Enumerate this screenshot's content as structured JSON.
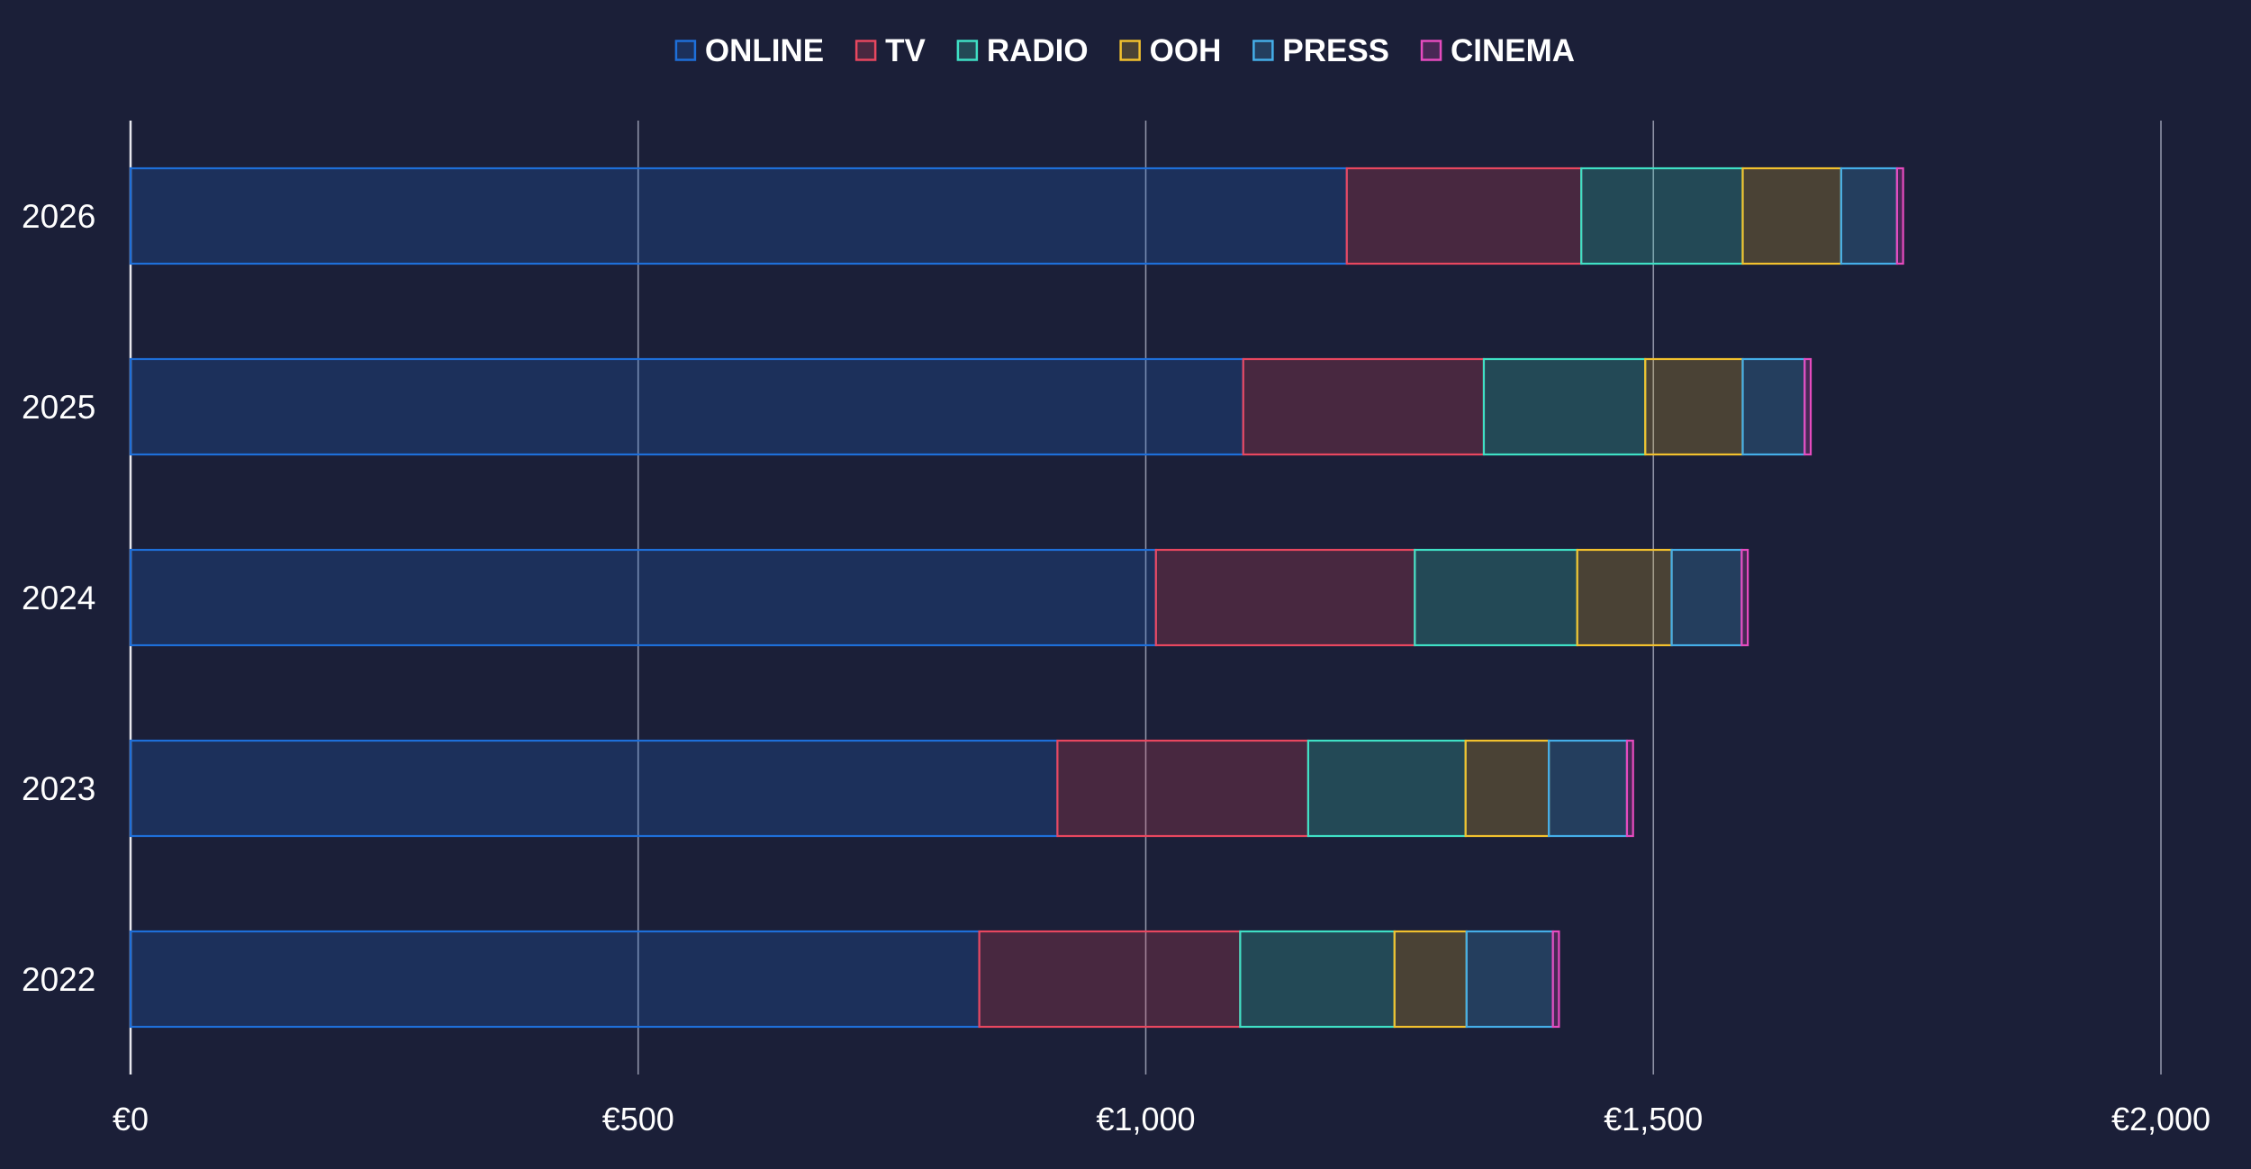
{
  "chart_data": {
    "type": "bar",
    "orientation": "horizontal",
    "stacked": true,
    "categories": [
      "2026",
      "2025",
      "2024",
      "2023",
      "2022"
    ],
    "series": [
      {
        "name": "ONLINE",
        "color": "#1e6fd9",
        "values": [
          1198,
          1096,
          1010,
          913,
          836
        ]
      },
      {
        "name": "TV",
        "color": "#e8475f",
        "values": [
          231,
          237,
          255,
          247,
          257
        ]
      },
      {
        "name": "RADIO",
        "color": "#3fe0c5",
        "values": [
          159,
          159,
          160,
          155,
          152
        ]
      },
      {
        "name": "OOH",
        "color": "#f2c12e",
        "values": [
          97,
          96,
          93,
          82,
          71
        ]
      },
      {
        "name": "PRESS",
        "color": "#45aee8",
        "values": [
          55,
          61,
          69,
          77,
          85
        ]
      },
      {
        "name": "CINEMA",
        "color": "#e64bbf",
        "values": [
          6,
          6,
          6,
          6,
          6
        ]
      }
    ],
    "x_ticks": [
      "€0",
      "€500",
      "€1,000",
      "€1,500",
      "€2,000"
    ],
    "xlim": [
      0,
      2000
    ],
    "grid": true,
    "legend": "top-center",
    "title": "",
    "xlabel": "",
    "ylabel": ""
  }
}
